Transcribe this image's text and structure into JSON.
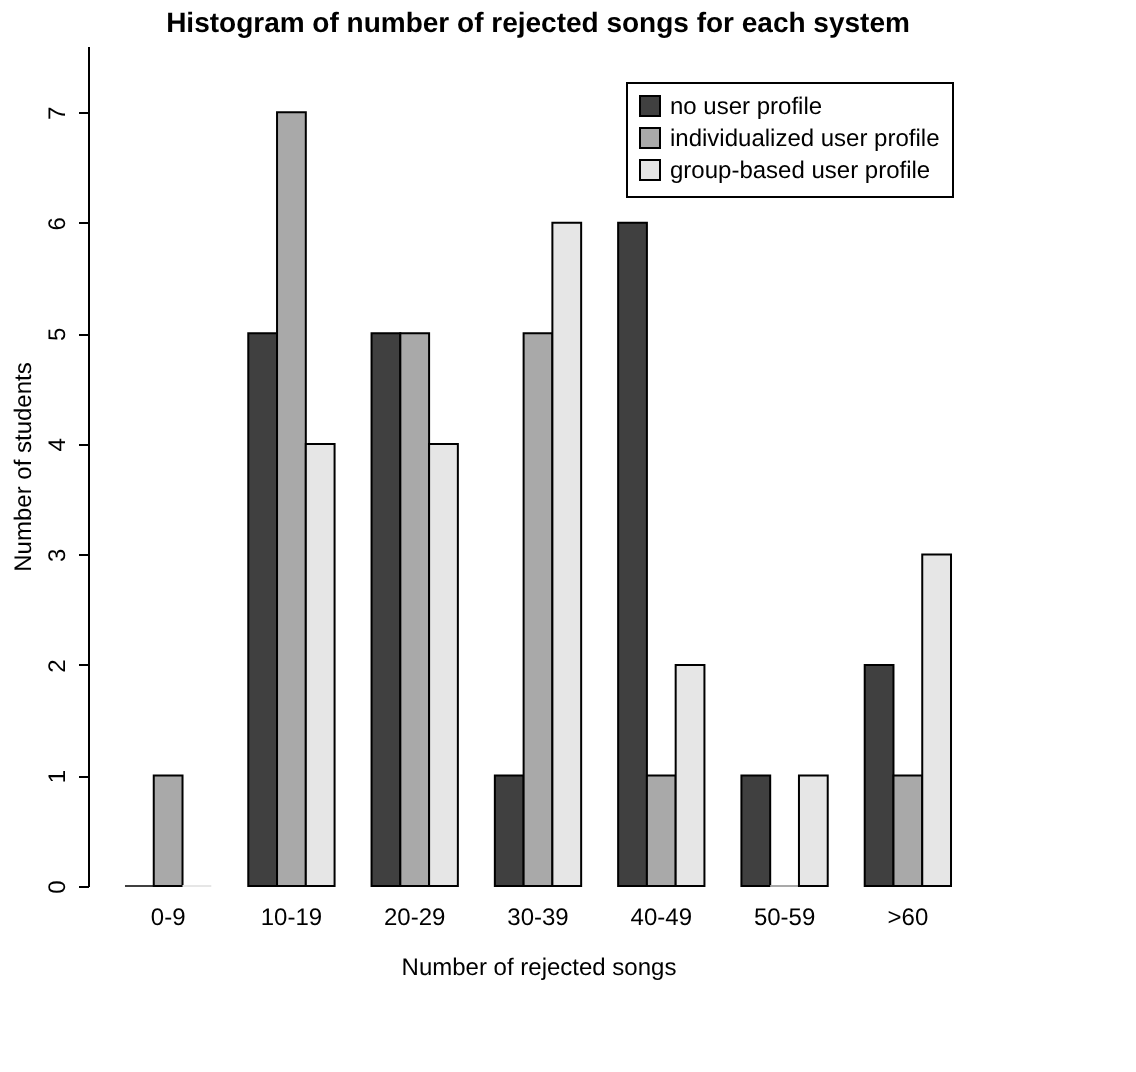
{
  "chart_data": {
    "type": "bar",
    "title": "Histogram of number of rejected songs for each system",
    "xlabel": "Number of rejected songs",
    "ylabel": "Number of students",
    "categories": [
      "0-9",
      "10-19",
      "20-29",
      "30-39",
      "40-49",
      "50-59",
      ">60"
    ],
    "series": [
      {
        "name": "no user profile",
        "color": "#404040",
        "values": [
          0,
          5,
          5,
          1,
          6,
          1,
          2
        ]
      },
      {
        "name": "individualized user profile",
        "color": "#a9a9a9",
        "values": [
          1,
          7,
          5,
          5,
          1,
          0,
          1
        ]
      },
      {
        "name": "group-based user profile",
        "color": "#e6e6e6",
        "values": [
          0,
          4,
          4,
          6,
          2,
          1,
          3
        ]
      }
    ],
    "ylim": [
      0,
      7.6
    ],
    "yticks": [
      0,
      1,
      2,
      3,
      4,
      5,
      6,
      7
    ],
    "grid": false,
    "legend": "top right"
  }
}
